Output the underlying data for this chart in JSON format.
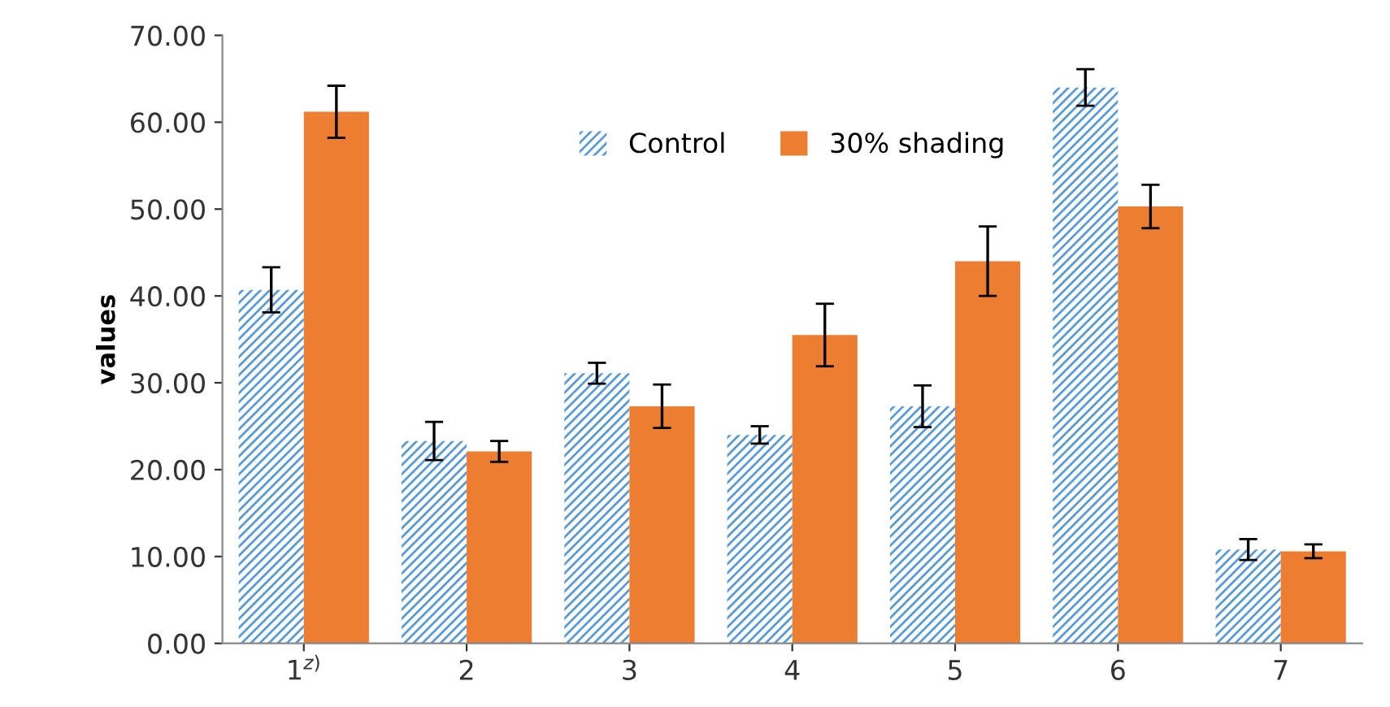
{
  "chart_data": {
    "type": "bar",
    "ylabel": "values",
    "categories": [
      "1$^{z)}$",
      "2",
      "3",
      "4",
      "5",
      "6",
      "7"
    ],
    "series": [
      {
        "name": "Control",
        "color": "#5b9bd5",
        "values": [
          40.7,
          23.3,
          31.1,
          24.0,
          27.3,
          64.0,
          10.8
        ],
        "errors": [
          2.6,
          2.2,
          1.2,
          1.0,
          2.4,
          2.1,
          1.2
        ]
      },
      {
        "name": "30% shading",
        "color": "#ed7d31",
        "values": [
          61.2,
          22.1,
          27.3,
          35.5,
          44.0,
          50.3,
          10.6
        ],
        "errors": [
          3.0,
          1.2,
          2.5,
          3.6,
          4.0,
          2.5,
          0.8
        ]
      }
    ],
    "ylim": [
      0,
      70
    ],
    "yticks": [
      {
        "value": 0,
        "label": "0.00"
      },
      {
        "value": 10,
        "label": "10.00"
      },
      {
        "value": 20,
        "label": "20.00"
      },
      {
        "value": 30,
        "label": "30.00"
      },
      {
        "value": 40,
        "label": "40.00"
      },
      {
        "value": 50,
        "label": "50.00"
      },
      {
        "value": 60,
        "label": "60.00"
      },
      {
        "value": 70,
        "label": "70.00"
      }
    ],
    "grid": false,
    "legend": "top"
  }
}
